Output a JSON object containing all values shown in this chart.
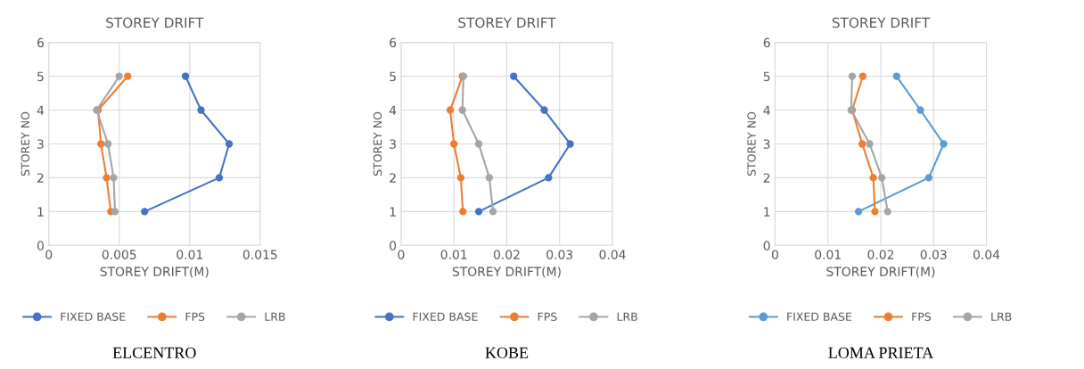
{
  "chart_data": [
    {
      "type": "line",
      "title": "STOREY DRIFT",
      "xlabel": "STOREY DRIFT(M)",
      "ylabel": "STOREY NO",
      "xlim": [
        0,
        0.015
      ],
      "xticks": [
        0,
        0.005,
        0.01,
        0.015
      ],
      "ylim": [
        0,
        6
      ],
      "yticks": [
        0,
        1,
        2,
        3,
        4,
        5,
        6
      ],
      "grid": true,
      "legend": "bottom",
      "marker": "circle",
      "line_style": "solid",
      "annotations": [
        "ELCENTRO"
      ],
      "series": [
        {
          "name": "FIXED BASE",
          "color": "#4472c4",
          "x": [
            0.0068,
            0.0121,
            0.0128,
            0.0108,
            0.0097
          ],
          "values": [
            1,
            2,
            3,
            4,
            5
          ]
        },
        {
          "name": "FPS",
          "color": "#ed7d31",
          "x": [
            0.0044,
            0.0041,
            0.0037,
            0.0035,
            0.0056
          ],
          "values": [
            1,
            2,
            3,
            4,
            5
          ]
        },
        {
          "name": "LRB",
          "color": "#a5a5a5",
          "x": [
            0.0047,
            0.0046,
            0.0042,
            0.0034,
            0.005
          ],
          "values": [
            1,
            2,
            3,
            4,
            5
          ]
        }
      ]
    },
    {
      "type": "line",
      "title": "STOREY DRIFT",
      "xlabel": "STOREY DRIFT(M)",
      "ylabel": "STOREY NO",
      "xlim": [
        0,
        0.04
      ],
      "xticks": [
        0,
        0.01,
        0.02,
        0.03,
        0.04
      ],
      "ylim": [
        0,
        6
      ],
      "yticks": [
        0,
        1,
        2,
        3,
        4,
        5,
        6
      ],
      "grid": true,
      "legend": "bottom",
      "marker": "circle",
      "line_style": "solid",
      "annotations": [
        "KOBE"
      ],
      "series": [
        {
          "name": "FIXED BASE",
          "color": "#4472c4",
          "x": [
            0.0147,
            0.0279,
            0.032,
            0.0271,
            0.0213
          ],
          "values": [
            1,
            2,
            3,
            4,
            5
          ]
        },
        {
          "name": "FPS",
          "color": "#ed7d31",
          "x": [
            0.0117,
            0.0113,
            0.01,
            0.0093,
            0.0116
          ],
          "values": [
            1,
            2,
            3,
            4,
            5
          ]
        },
        {
          "name": "LRB",
          "color": "#a5a5a5",
          "x": [
            0.0174,
            0.0167,
            0.0147,
            0.0116,
            0.0118
          ],
          "values": [
            1,
            2,
            3,
            4,
            5
          ]
        }
      ]
    },
    {
      "type": "line",
      "title": "STOREY DRIFT",
      "xlabel": "STOREY DRIFT(M)",
      "ylabel": "STOREY NO",
      "xlim": [
        0,
        0.04
      ],
      "xticks": [
        0,
        0.01,
        0.02,
        0.03,
        0.04
      ],
      "ylim": [
        0,
        6
      ],
      "yticks": [
        0,
        1,
        2,
        3,
        4,
        5,
        6
      ],
      "grid": true,
      "legend": "bottom",
      "marker": "circle",
      "line_style": "solid",
      "annotations": [
        "LOMA PRIETA"
      ],
      "series": [
        {
          "name": "FIXED BASE",
          "color": "#5b9bd5",
          "x": [
            0.0158,
            0.0291,
            0.0319,
            0.0275,
            0.023
          ],
          "values": [
            1,
            2,
            3,
            4,
            5
          ]
        },
        {
          "name": "FPS",
          "color": "#ed7d31",
          "x": [
            0.0189,
            0.0186,
            0.0165,
            0.0146,
            0.0166
          ],
          "values": [
            1,
            2,
            3,
            4,
            5
          ]
        },
        {
          "name": "LRB",
          "color": "#a5a5a5",
          "x": [
            0.0213,
            0.0202,
            0.0179,
            0.0144,
            0.0146
          ],
          "values": [
            1,
            2,
            3,
            4,
            5
          ]
        }
      ]
    }
  ]
}
